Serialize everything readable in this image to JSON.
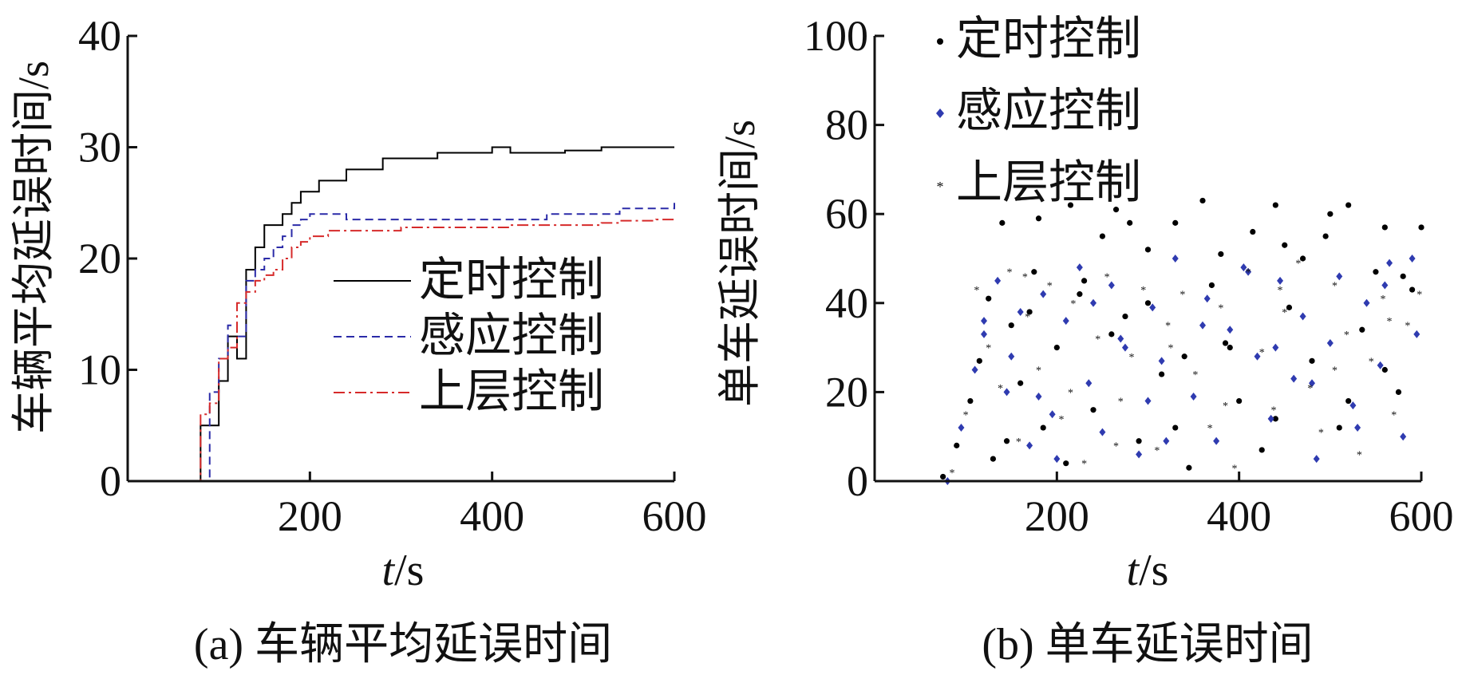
{
  "chart_data": [
    {
      "type": "line",
      "caption": "(a) 车辆平均延误时间",
      "ylabel": "车辆平均延误时间/s",
      "xlabel_italic": "t",
      "xlabel_unit": "/s",
      "xlim": [
        0,
        600
      ],
      "ylim": [
        0,
        40
      ],
      "xticks": [
        "200",
        "400",
        "600"
      ],
      "yticks": [
        "0",
        "10",
        "20",
        "30",
        "40"
      ],
      "legend_position": "lower-right",
      "series": [
        {
          "name": "定时控制",
          "color": "#000000",
          "dash": "solid",
          "x": [
            70,
            80,
            90,
            100,
            110,
            120,
            130,
            140,
            150,
            160,
            170,
            180,
            190,
            200,
            210,
            220,
            230,
            240,
            250,
            260,
            280,
            300,
            320,
            340,
            360,
            380,
            400,
            420,
            440,
            460,
            480,
            500,
            520,
            540,
            560,
            580,
            600
          ],
          "y": [
            0,
            5,
            5,
            9,
            13,
            11,
            19,
            21,
            23,
            23,
            24,
            25,
            26,
            26,
            27,
            27,
            27,
            28,
            28,
            28,
            29,
            29,
            29,
            29.5,
            29.5,
            29.5,
            30,
            29.5,
            29.5,
            29.5,
            29.7,
            29.7,
            30,
            30,
            30,
            30,
            30
          ]
        },
        {
          "name": "感应控制",
          "color": "#2b2ba8",
          "dash": "dashed",
          "x": [
            80,
            90,
            100,
            110,
            120,
            130,
            140,
            150,
            160,
            170,
            180,
            190,
            200,
            220,
            240,
            260,
            280,
            300,
            320,
            340,
            360,
            380,
            400,
            420,
            440,
            460,
            480,
            500,
            520,
            540,
            560,
            580,
            600
          ],
          "y": [
            0,
            8,
            11,
            14,
            13,
            18,
            19,
            20,
            21,
            22,
            23,
            23.5,
            24,
            24,
            23.5,
            23.5,
            23.5,
            23.5,
            23.5,
            23.5,
            23.5,
            23.5,
            23.5,
            23.5,
            23.5,
            24,
            24,
            24,
            24,
            24.5,
            24.5,
            24.5,
            25
          ]
        },
        {
          "name": "上层控制",
          "color": "#d62a2a",
          "dash": "dashdot",
          "x": [
            70,
            80,
            90,
            100,
            110,
            120,
            130,
            140,
            150,
            160,
            170,
            180,
            190,
            200,
            220,
            240,
            260,
            280,
            300,
            320,
            340,
            360,
            380,
            400,
            420,
            440,
            460,
            480,
            500,
            520,
            540,
            560,
            580,
            600
          ],
          "y": [
            0,
            6,
            7,
            11,
            12,
            16,
            17,
            18,
            18.5,
            19,
            20,
            21,
            21.5,
            22,
            22.5,
            22.5,
            22.5,
            22.5,
            22.8,
            22.8,
            22.8,
            22.8,
            22.8,
            22.8,
            23,
            23,
            23,
            23,
            23,
            23.2,
            23.4,
            23.4,
            23.5,
            23.5
          ]
        }
      ]
    },
    {
      "type": "scatter",
      "caption": "(b) 单车延误时间",
      "ylabel": "单车延误时间/s",
      "xlabel_italic": "t",
      "xlabel_unit": "/s",
      "xlim": [
        0,
        600
      ],
      "ylim": [
        0,
        100
      ],
      "xticks": [
        "200",
        "400",
        "600"
      ],
      "yticks": [
        "0",
        "20",
        "40",
        "60",
        "80",
        "100"
      ],
      "legend_position": "top-left",
      "series": [
        {
          "name": "定时控制",
          "color": "#000000",
          "marker": "dot",
          "x": [
            75,
            90,
            105,
            115,
            125,
            140,
            150,
            160,
            175,
            185,
            200,
            215,
            225,
            240,
            250,
            265,
            275,
            290,
            300,
            315,
            330,
            345,
            360,
            370,
            385,
            400,
            415,
            425,
            440,
            455,
            470,
            480,
            495,
            510,
            520,
            535,
            550,
            560,
            575,
            590,
            600,
            145,
            180,
            210,
            260,
            300,
            340,
            380,
            440,
            500,
            560,
            130,
            170,
            230,
            280,
            330,
            390,
            450,
            520,
            580
          ],
          "y": [
            1,
            8,
            18,
            27,
            41,
            58,
            35,
            22,
            47,
            12,
            30,
            62,
            42,
            16,
            55,
            61,
            37,
            9,
            52,
            24,
            58,
            3,
            63,
            44,
            31,
            18,
            56,
            7,
            62,
            39,
            50,
            27,
            55,
            12,
            62,
            34,
            47,
            57,
            20,
            43,
            57,
            9,
            59,
            4,
            33,
            40,
            28,
            51,
            14,
            60,
            25,
            5,
            38,
            45,
            58,
            12,
            30,
            53,
            18,
            46
          ]
        },
        {
          "name": "感应控制",
          "color": "#2f3bb0",
          "marker": "diamond",
          "x": [
            80,
            95,
            110,
            120,
            135,
            145,
            160,
            170,
            185,
            195,
            210,
            225,
            235,
            250,
            260,
            275,
            290,
            305,
            315,
            330,
            350,
            365,
            375,
            390,
            405,
            420,
            435,
            445,
            460,
            470,
            485,
            500,
            510,
            525,
            540,
            555,
            565,
            580,
            595,
            150,
            200,
            240,
            300,
            360,
            410,
            480,
            530,
            590,
            120,
            180,
            270,
            320,
            440,
            560
          ],
          "y": [
            0,
            12,
            25,
            33,
            45,
            20,
            38,
            8,
            42,
            15,
            36,
            48,
            22,
            11,
            44,
            30,
            6,
            39,
            27,
            50,
            19,
            41,
            9,
            34,
            48,
            28,
            14,
            45,
            23,
            37,
            5,
            31,
            46,
            17,
            40,
            26,
            49,
            10,
            33,
            28,
            5,
            40,
            18,
            35,
            47,
            22,
            12,
            50,
            36,
            19,
            32,
            9,
            30,
            44
          ]
        },
        {
          "name": "上层控制",
          "color": "#d62a2a",
          "marker": "star",
          "x": [
            85,
            100,
            112,
            125,
            138,
            148,
            158,
            168,
            180,
            192,
            205,
            218,
            230,
            245,
            255,
            270,
            282,
            295,
            310,
            322,
            338,
            352,
            368,
            380,
            395,
            410,
            425,
            438,
            450,
            465,
            478,
            490,
            505,
            518,
            532,
            545,
            558,
            570,
            585,
            598,
            165,
            215,
            265,
            325,
            385,
            445,
            505,
            565
          ],
          "y": [
            2,
            15,
            43,
            30,
            21,
            47,
            9,
            37,
            25,
            44,
            14,
            40,
            4,
            32,
            46,
            18,
            28,
            43,
            7,
            35,
            42,
            24,
            12,
            39,
            3,
            47,
            29,
            16,
            38,
            49,
            21,
            11,
            44,
            33,
            6,
            27,
            41,
            15,
            35,
            42,
            46,
            20,
            8,
            30,
            17,
            43,
            25,
            36
          ]
        }
      ]
    }
  ]
}
